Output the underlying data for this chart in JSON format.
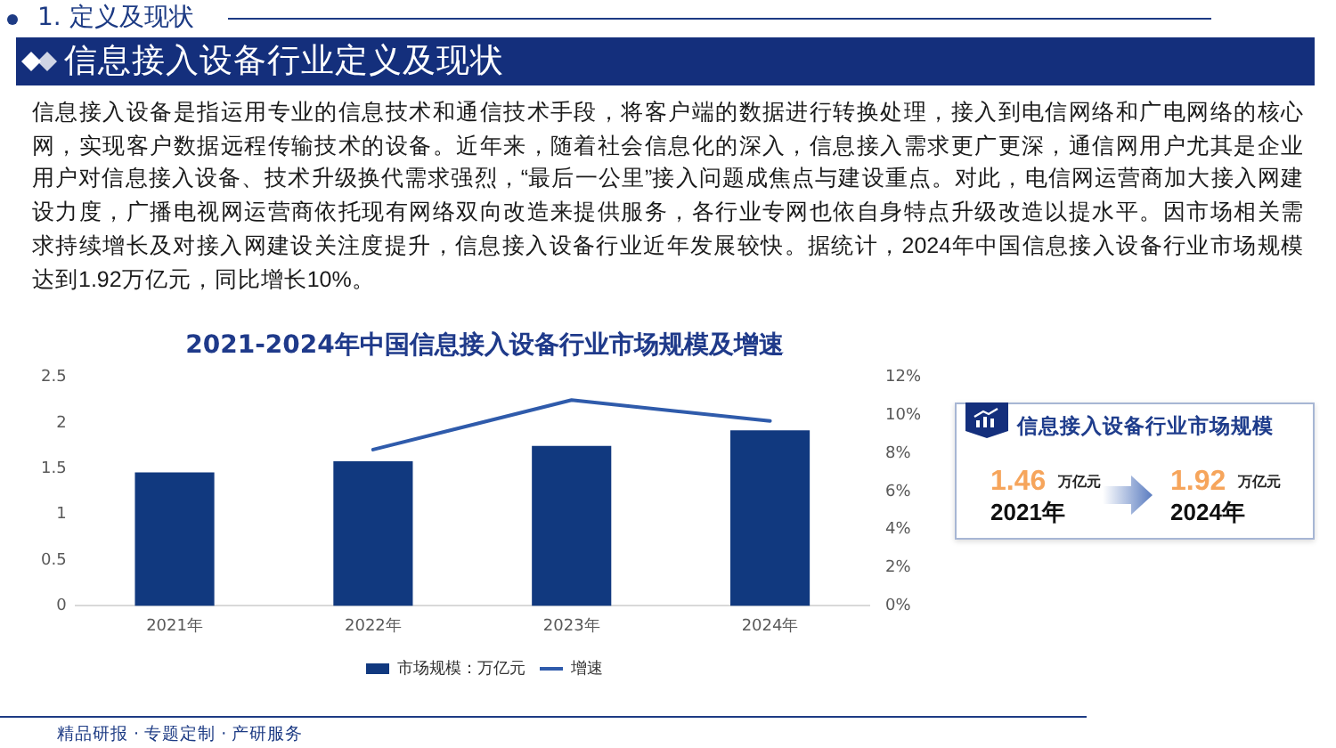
{
  "chart_data": [
    {
      "type": "bar",
      "title": "2021-2024年中国信息接入设备行业市场规模及增速",
      "categories": [
        "2021年",
        "2022年",
        "2023年",
        "2024年"
      ],
      "series": [
        {
          "name": "市场规模：万亿元",
          "type": "bar",
          "color": "#11397f",
          "values": [
            1.46,
            1.58,
            1.75,
            1.92
          ]
        },
        {
          "name": "增速",
          "type": "line",
          "axis": "y2",
          "color": "#2f5bab",
          "values": [
            null,
            8.2,
            10.8,
            9.7
          ]
        }
      ],
      "ylim": [
        0,
        2.5
      ],
      "yticks": [
        0,
        0.5,
        1,
        1.5,
        2,
        2.5
      ],
      "y2lim": [
        0,
        12
      ],
      "y2ticks": [
        {
          "value": 0,
          "label": "0%"
        },
        {
          "value": 2,
          "label": "2%"
        },
        {
          "value": 4,
          "label": "4%"
        },
        {
          "value": 6,
          "label": "6%"
        },
        {
          "value": 8,
          "label": "8%"
        },
        {
          "value": 10,
          "label": "10%"
        },
        {
          "value": 12,
          "label": "12%"
        }
      ],
      "legend": "bottom",
      "annotations": [
        "1. 定义及现状",
        "信息接入设备行业定义及现状",
        "信息接入设备是指运用专业的信息技术和通信技术手段，将客户端的数据进行转换处理，接入到电信网络和广电网络的核心网，实现客户数据远程传输技术的设备。近年来，随着社会信息化的深入，信息接入需求更广更深，通信网用户尤其是企业用户对信息接入设备、技术升级换代需求强烈，“最后一公里”接入问题成焦点与建设重点。对此，电信网运营商加大接入网建设力度，广播电视网运营商依托现有网络双向改造来提供服务，各行业专网也依自身特点升级改造以提水平。因市场相关需求持续增长及对接入网建设关注度提升，信息接入设备行业近年发展较快。据统计，2024年中国信息接入设备行业市场规模达到1.92万亿元，同比增长10%。",
        "精品研报 · 专题定制 · 产研服务"
      ]
    },
    {
      "type": "other",
      "title": "信息接入设备行业市场规模",
      "annotations": [
        "1.46",
        "万亿元",
        "2021年",
        "1.92",
        "万亿元",
        "2024年"
      ]
    }
  ]
}
